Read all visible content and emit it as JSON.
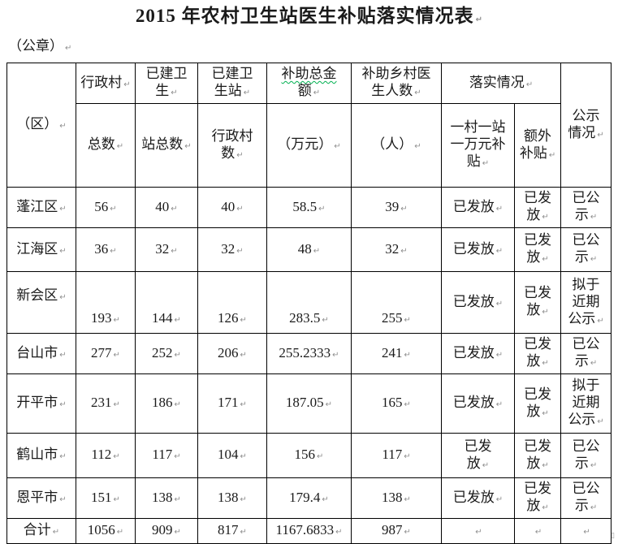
{
  "page": {
    "title": "2015 年农村卫生站医生补贴落实情况表",
    "seal_label": "（公章）",
    "formatting_mark": "↵",
    "end_mark": "▯"
  },
  "colors": {
    "background": "#ffffff",
    "text": "#1a1a1a",
    "border": "#000000",
    "paragraph_mark": "#8f8f8f",
    "spellcheck_underline": "#00b050"
  },
  "table": {
    "headers": {
      "region": "（区）",
      "admin_villages_top": "行政村",
      "admin_villages_bottom": "总数",
      "built_stations_top": "已建卫\n生",
      "built_stations_bottom": "站总数",
      "station_villages_top": "已建卫\n生站",
      "station_villages_bottom": "行政村\n数",
      "subsidy_amount_top_underlined": "补助总金",
      "subsidy_amount_top_rest": "额",
      "subsidy_amount_bottom": "（万元）",
      "doctors_top": "补助乡村医\n生人数",
      "doctors_bottom": "（人）",
      "implementation": "落实情况",
      "one_village_subsidy": "一村一站\n一万元补\n贴",
      "extra_subsidy": "额外\n补贴",
      "publicity": "公示\n情况"
    },
    "rows": [
      {
        "region": "蓬江区",
        "admin_villages": "56",
        "built_stations": "40",
        "station_villages": "40",
        "subsidy_amount": "58.5",
        "doctors": "39",
        "one_village_subsidy": "已发放",
        "extra_subsidy": "已发\n放",
        "publicity": "已公\n示"
      },
      {
        "region": "江海区",
        "admin_villages": "36",
        "built_stations": "32",
        "station_villages": "32",
        "subsidy_amount": "48",
        "doctors": "32",
        "one_village_subsidy": "已发放",
        "extra_subsidy": "已发\n放",
        "publicity": "已公\n示"
      },
      {
        "region": "新会区",
        "admin_villages": "193",
        "built_stations": "144",
        "station_villages": "126",
        "subsidy_amount": "283.5",
        "doctors": "255",
        "one_village_subsidy": "已发放",
        "extra_subsidy": "已发\n放",
        "publicity": "拟于\n近期\n公示"
      },
      {
        "region": "台山市",
        "admin_villages": "277",
        "built_stations": "252",
        "station_villages": "206",
        "subsidy_amount": "255.2333",
        "doctors": "241",
        "one_village_subsidy": "已发放",
        "extra_subsidy": "已发\n放",
        "publicity": "已公\n示"
      },
      {
        "region": "开平市",
        "admin_villages": "231",
        "built_stations": "186",
        "station_villages": "171",
        "subsidy_amount": "187.05",
        "doctors": "165",
        "one_village_subsidy": "已发放",
        "extra_subsidy": "已发\n放",
        "publicity": "拟于\n近期\n公示"
      },
      {
        "region": "鹤山市",
        "admin_villages": "112",
        "built_stations": "117",
        "station_villages": "104",
        "subsidy_amount": "156",
        "doctors": "117",
        "one_village_subsidy": "已发\n放",
        "extra_subsidy": "已发\n放",
        "publicity": "已公\n示"
      },
      {
        "region": "恩平市",
        "admin_villages": "151",
        "built_stations": "138",
        "station_villages": "138",
        "subsidy_amount": "179.4",
        "doctors": "138",
        "one_village_subsidy": "已发放",
        "extra_subsidy": "已发\n放",
        "publicity": "已公\n示"
      },
      {
        "region": "合计",
        "admin_villages": "1056",
        "built_stations": "909",
        "station_villages": "817",
        "subsidy_amount": "1167.6833",
        "doctors": "987",
        "one_village_subsidy": "",
        "extra_subsidy": "",
        "publicity": ""
      }
    ]
  }
}
